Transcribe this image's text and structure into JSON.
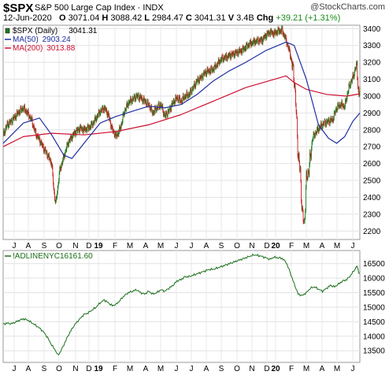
{
  "header": {
    "symbol": "$SPX",
    "description": "S&P 500 Large Cap Index",
    "exchange": "INDX",
    "brand": "StockCharts.com",
    "date": "12-Jun-2020",
    "open_label": "O",
    "open": "3071.04",
    "high_label": "H",
    "high": "3088.42",
    "low_label": "L",
    "low": "2984.47",
    "close_label": "C",
    "close": "3041.31",
    "volume_label": "V",
    "volume": "3.4B",
    "change_label": "Chg",
    "change": "+39.21 (+1.31%)"
  },
  "chart_data": [
    {
      "type": "candlestick",
      "panel": "price",
      "legend": [
        {
          "name": "$SPX (Daily)",
          "value": "3041.31",
          "color": "#000000"
        },
        {
          "name": "MA(50)",
          "value": "2903.24",
          "color": "#1f2fa0"
        },
        {
          "name": "MA(200)",
          "value": "3013.88",
          "color": "#cc1030"
        }
      ],
      "colors": {
        "up": "#1a7a1a",
        "down": "#c81e1e",
        "ma50": "#1f2fa0",
        "ma200": "#cc1030"
      },
      "ylim": [
        2150,
        3420
      ],
      "yticks": [
        2200,
        2300,
        2400,
        2500,
        2600,
        2700,
        2800,
        2900,
        3000,
        3100,
        3200,
        3300,
        3400
      ],
      "axis_position": "right",
      "grid": true,
      "x_tick_labels": [
        "J",
        "A",
        "S",
        "O",
        "N",
        "D",
        "19",
        "F",
        "M",
        "A",
        "M",
        "J",
        "J",
        "A",
        "S",
        "O",
        "N",
        "D",
        "20",
        "F",
        "M",
        "A",
        "M",
        "J"
      ],
      "close_path": [
        [
          0,
          2770
        ],
        [
          8,
          2830
        ],
        [
          16,
          2850
        ],
        [
          24,
          2880
        ],
        [
          32,
          2910
        ],
        [
          40,
          2930
        ],
        [
          48,
          2900
        ],
        [
          56,
          2860
        ],
        [
          64,
          2780
        ],
        [
          72,
          2740
        ],
        [
          80,
          2690
        ],
        [
          88,
          2650
        ],
        [
          96,
          2600
        ],
        [
          100,
          2450
        ],
        [
          104,
          2360
        ],
        [
          108,
          2460
        ],
        [
          112,
          2560
        ],
        [
          120,
          2640
        ],
        [
          128,
          2720
        ],
        [
          136,
          2760
        ],
        [
          144,
          2790
        ],
        [
          152,
          2810
        ],
        [
          160,
          2800
        ],
        [
          168,
          2810
        ],
        [
          176,
          2830
        ],
        [
          184,
          2870
        ],
        [
          192,
          2910
        ],
        [
          200,
          2930
        ],
        [
          208,
          2890
        ],
        [
          216,
          2800
        ],
        [
          224,
          2760
        ],
        [
          232,
          2810
        ],
        [
          240,
          2910
        ],
        [
          248,
          2960
        ],
        [
          256,
          2980
        ],
        [
          264,
          3000
        ],
        [
          272,
          2990
        ],
        [
          280,
          2970
        ],
        [
          288,
          2950
        ],
        [
          296,
          2900
        ],
        [
          304,
          2930
        ],
        [
          312,
          2950
        ],
        [
          320,
          2880
        ],
        [
          328,
          2910
        ],
        [
          336,
          2960
        ],
        [
          344,
          2990
        ],
        [
          352,
          2970
        ],
        [
          360,
          3000
        ],
        [
          368,
          3010
        ],
        [
          376,
          3050
        ],
        [
          384,
          3090
        ],
        [
          392,
          3110
        ],
        [
          400,
          3140
        ],
        [
          408,
          3150
        ],
        [
          416,
          3160
        ],
        [
          424,
          3190
        ],
        [
          432,
          3220
        ],
        [
          440,
          3230
        ],
        [
          448,
          3240
        ],
        [
          456,
          3250
        ],
        [
          464,
          3260
        ],
        [
          472,
          3270
        ],
        [
          480,
          3290
        ],
        [
          488,
          3310
        ],
        [
          496,
          3320
        ],
        [
          504,
          3330
        ],
        [
          512,
          3330
        ],
        [
          520,
          3360
        ],
        [
          528,
          3380
        ],
        [
          536,
          3370
        ],
        [
          544,
          3385
        ],
        [
          552,
          3390
        ],
        [
          560,
          3330
        ],
        [
          568,
          3250
        ],
        [
          576,
          3110
        ],
        [
          580,
          2900
        ],
        [
          584,
          2640
        ],
        [
          588,
          2550
        ],
        [
          592,
          2300
        ],
        [
          596,
          2240
        ],
        [
          600,
          2500
        ],
        [
          604,
          2560
        ],
        [
          608,
          2630
        ],
        [
          612,
          2750
        ],
        [
          620,
          2790
        ],
        [
          628,
          2820
        ],
        [
          636,
          2840
        ],
        [
          644,
          2850
        ],
        [
          652,
          2860
        ],
        [
          660,
          2930
        ],
        [
          668,
          2950
        ],
        [
          676,
          2940
        ],
        [
          684,
          3050
        ],
        [
          692,
          3110
        ],
        [
          700,
          3190
        ],
        [
          702,
          3060
        ],
        [
          704,
          3000
        ],
        [
          706,
          3040
        ]
      ],
      "ma50_path": [
        [
          0,
          2720
        ],
        [
          40,
          2840
        ],
        [
          72,
          2870
        ],
        [
          96,
          2770
        ],
        [
          120,
          2650
        ],
        [
          136,
          2630
        ],
        [
          160,
          2720
        ],
        [
          192,
          2840
        ],
        [
          224,
          2880
        ],
        [
          256,
          2910
        ],
        [
          288,
          2940
        ],
        [
          320,
          2930
        ],
        [
          352,
          2950
        ],
        [
          384,
          3010
        ],
        [
          416,
          3090
        ],
        [
          448,
          3150
        ],
        [
          480,
          3200
        ],
        [
          520,
          3270
        ],
        [
          560,
          3320
        ],
        [
          576,
          3300
        ],
        [
          600,
          3100
        ],
        [
          624,
          2830
        ],
        [
          644,
          2750
        ],
        [
          660,
          2720
        ],
        [
          676,
          2760
        ],
        [
          692,
          2850
        ],
        [
          706,
          2900
        ]
      ],
      "ma200_path": [
        [
          0,
          2700
        ],
        [
          40,
          2760
        ],
        [
          96,
          2780
        ],
        [
          160,
          2770
        ],
        [
          224,
          2790
        ],
        [
          288,
          2830
        ],
        [
          352,
          2890
        ],
        [
          416,
          2970
        ],
        [
          480,
          3050
        ],
        [
          560,
          3120
        ],
        [
          576,
          3080
        ],
        [
          600,
          3040
        ],
        [
          640,
          3010
        ],
        [
          680,
          3000
        ],
        [
          706,
          3014
        ]
      ]
    },
    {
      "type": "line",
      "panel": "breadth",
      "legend": [
        {
          "name": "!ADLINENYC",
          "value": "16161.60",
          "color": "#1a6e1a"
        }
      ],
      "ylim": [
        13100,
        16950
      ],
      "yticks": [
        13500,
        14000,
        14500,
        15000,
        15500,
        16000,
        16500
      ],
      "axis_position": "right",
      "grid": true,
      "x_tick_labels": [
        "J",
        "A",
        "S",
        "O",
        "N",
        "D",
        "19",
        "F",
        "M",
        "A",
        "M",
        "J",
        "J",
        "A",
        "S",
        "O",
        "N",
        "D",
        "20",
        "F",
        "M",
        "A",
        "M",
        "J"
      ],
      "path": [
        [
          0,
          14420
        ],
        [
          8,
          14450
        ],
        [
          16,
          14430
        ],
        [
          24,
          14480
        ],
        [
          32,
          14550
        ],
        [
          40,
          14600
        ],
        [
          48,
          14560
        ],
        [
          56,
          14470
        ],
        [
          64,
          14380
        ],
        [
          72,
          14280
        ],
        [
          80,
          14150
        ],
        [
          88,
          13950
        ],
        [
          96,
          13700
        ],
        [
          104,
          13500
        ],
        [
          108,
          13350
        ],
        [
          112,
          13420
        ],
        [
          120,
          13700
        ],
        [
          128,
          14000
        ],
        [
          136,
          14250
        ],
        [
          144,
          14450
        ],
        [
          152,
          14600
        ],
        [
          160,
          14750
        ],
        [
          168,
          14800
        ],
        [
          176,
          14900
        ],
        [
          184,
          15000
        ],
        [
          192,
          15150
        ],
        [
          200,
          15250
        ],
        [
          208,
          15150
        ],
        [
          216,
          15050
        ],
        [
          224,
          15100
        ],
        [
          232,
          15250
        ],
        [
          240,
          15400
        ],
        [
          248,
          15500
        ],
        [
          256,
          15550
        ],
        [
          264,
          15600
        ],
        [
          272,
          15500
        ],
        [
          280,
          15450
        ],
        [
          288,
          15550
        ],
        [
          296,
          15450
        ],
        [
          304,
          15500
        ],
        [
          312,
          15600
        ],
        [
          320,
          15550
        ],
        [
          328,
          15650
        ],
        [
          336,
          15750
        ],
        [
          344,
          15900
        ],
        [
          352,
          15950
        ],
        [
          360,
          16050
        ],
        [
          368,
          16050
        ],
        [
          376,
          16100
        ],
        [
          384,
          16150
        ],
        [
          392,
          16200
        ],
        [
          400,
          16250
        ],
        [
          408,
          16300
        ],
        [
          416,
          16300
        ],
        [
          424,
          16350
        ],
        [
          432,
          16400
        ],
        [
          440,
          16450
        ],
        [
          448,
          16500
        ],
        [
          456,
          16550
        ],
        [
          464,
          16600
        ],
        [
          472,
          16650
        ],
        [
          480,
          16700
        ],
        [
          488,
          16750
        ],
        [
          496,
          16800
        ],
        [
          504,
          16780
        ],
        [
          512,
          16750
        ],
        [
          520,
          16700
        ],
        [
          528,
          16650
        ],
        [
          536,
          16720
        ],
        [
          544,
          16700
        ],
        [
          552,
          16680
        ],
        [
          560,
          16550
        ],
        [
          568,
          16200
        ],
        [
          576,
          15800
        ],
        [
          584,
          15450
        ],
        [
          592,
          15400
        ],
        [
          600,
          15500
        ],
        [
          608,
          15650
        ],
        [
          616,
          15700
        ],
        [
          624,
          15620
        ],
        [
          632,
          15550
        ],
        [
          640,
          15650
        ],
        [
          648,
          15750
        ],
        [
          656,
          15700
        ],
        [
          664,
          15800
        ],
        [
          672,
          15900
        ],
        [
          680,
          15950
        ],
        [
          688,
          16100
        ],
        [
          696,
          16300
        ],
        [
          700,
          16420
        ],
        [
          704,
          16200
        ],
        [
          706,
          16161
        ]
      ]
    }
  ]
}
